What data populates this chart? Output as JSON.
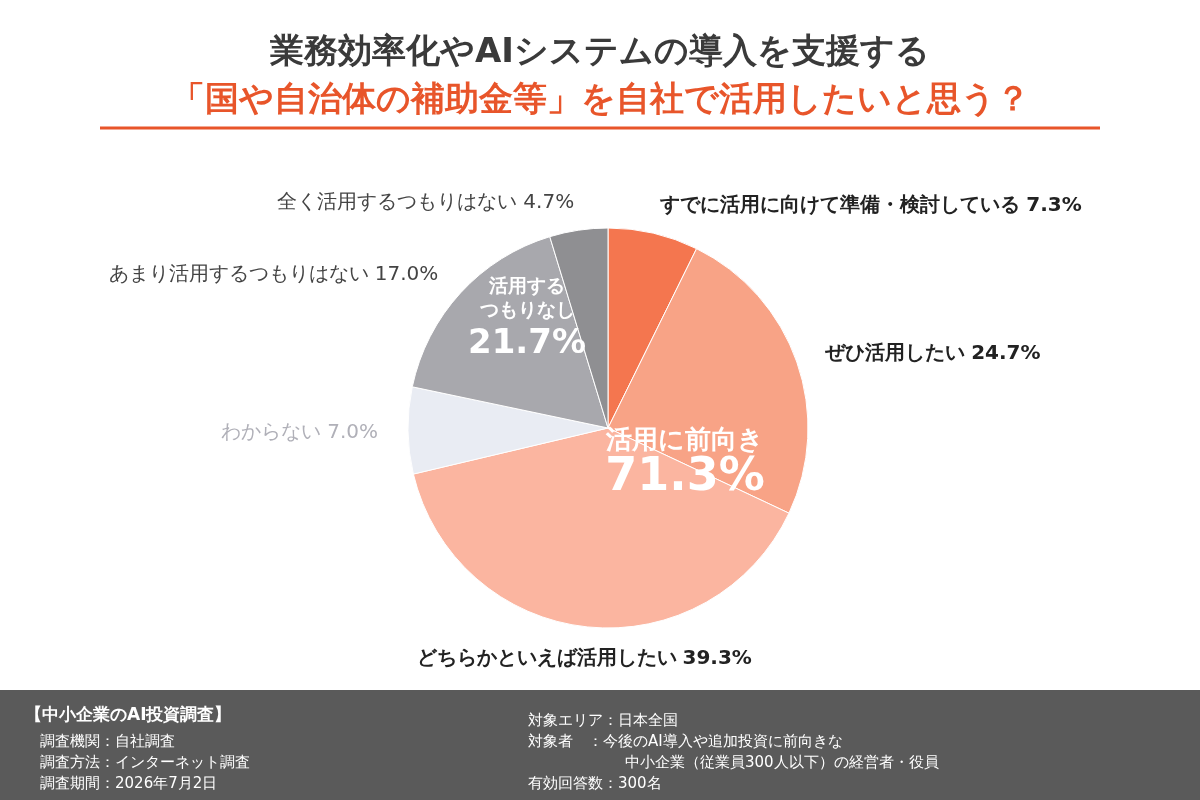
{
  "chart_data": {
    "type": "pie",
    "title": "業務効率化やAIシステムの導入を支援する",
    "subtitle": "「国や自治体の補助金等」を自社で活用したいと思う？",
    "categories": [
      "すでに活用に向けて準備・検討している",
      "ぜひ活用したい",
      "どちらかといえば活用したい",
      "わからない",
      "あまり活用するつもりはない",
      "全く活用するつもりはない"
    ],
    "values": [
      7.3,
      24.7,
      39.3,
      7.0,
      17.0,
      4.7
    ],
    "colors": [
      "#f4764f",
      "#f8a386",
      "#fbb5a0",
      "#e9ecf3",
      "#a8a8ad",
      "#8f8f92"
    ],
    "value_labels": [
      "7.3%",
      "24.7%",
      "39.3%",
      "7.0%",
      "17.0%",
      "4.7%"
    ],
    "annotations": [
      "活用に前向き",
      "71.3%",
      "活用する",
      "つもりなし",
      "21.7%",
      "【中小企業のAI投資調査】",
      "調査機関：自社調査",
      "調査方法：インターネット調査",
      "調査期間：2026年7月2日",
      "対象エリア：日本全国",
      "対象者　：今後のAI導入や追加投資に前向きな",
      "中小企業（従業員300人以下）の経営者・役員",
      "有効回答数：300名"
    ]
  }
}
